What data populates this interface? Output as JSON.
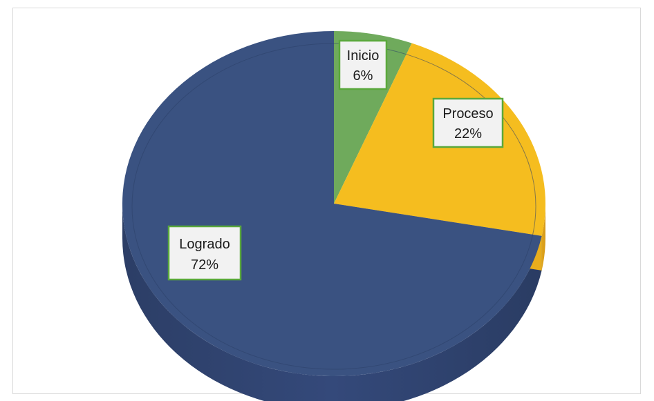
{
  "chart_data": {
    "type": "pie",
    "three_d": true,
    "title": "",
    "legend": "none",
    "categories": [
      "Logrado",
      "Inicio",
      "Proceso"
    ],
    "values": [
      72,
      6,
      22
    ],
    "labels": [
      {
        "name": "Logrado",
        "percent": "72%"
      },
      {
        "name": "Inicio",
        "percent": "6%"
      },
      {
        "name": "Proceso",
        "percent": "22%"
      }
    ],
    "colors": {
      "Logrado": "#3a5281",
      "Inicio": "#6faa5c",
      "Proceso": "#f5bd1f",
      "label_border": "#5aa83c",
      "label_fill": "#f2f2f2"
    }
  }
}
